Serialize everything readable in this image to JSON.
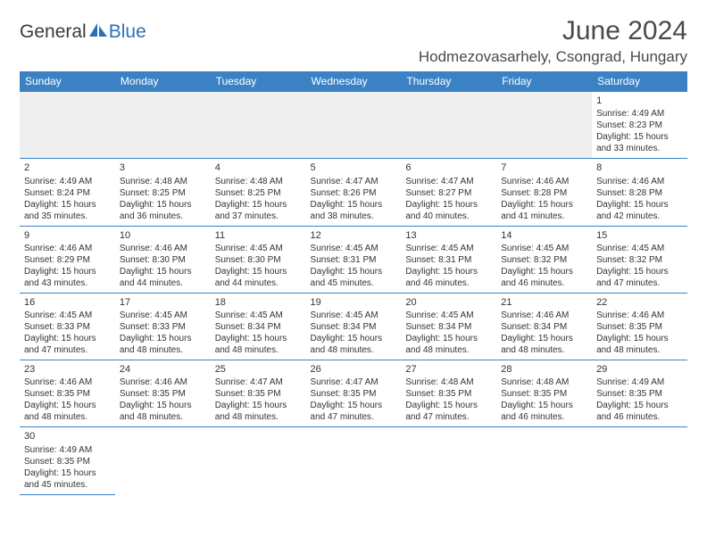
{
  "logo": {
    "text_a": "General",
    "text_b": "Blue"
  },
  "title": "June 2024",
  "location": "Hodmezovasarhely, Csongrad, Hungary",
  "day_headers": [
    "Sunday",
    "Monday",
    "Tuesday",
    "Wednesday",
    "Thursday",
    "Friday",
    "Saturday"
  ],
  "colors": {
    "header_bg": "#3b82c4",
    "header_text": "#ffffff",
    "border": "#3b82c4",
    "filler_bg": "#efefef",
    "text": "#333333",
    "logo_blue": "#2a72b5"
  },
  "weeks": [
    [
      {},
      {},
      {},
      {},
      {},
      {},
      {
        "n": "1",
        "sr": "Sunrise: 4:49 AM",
        "ss": "Sunset: 8:23 PM",
        "d1": "Daylight: 15 hours",
        "d2": "and 33 minutes."
      }
    ],
    [
      {
        "n": "2",
        "sr": "Sunrise: 4:49 AM",
        "ss": "Sunset: 8:24 PM",
        "d1": "Daylight: 15 hours",
        "d2": "and 35 minutes."
      },
      {
        "n": "3",
        "sr": "Sunrise: 4:48 AM",
        "ss": "Sunset: 8:25 PM",
        "d1": "Daylight: 15 hours",
        "d2": "and 36 minutes."
      },
      {
        "n": "4",
        "sr": "Sunrise: 4:48 AM",
        "ss": "Sunset: 8:25 PM",
        "d1": "Daylight: 15 hours",
        "d2": "and 37 minutes."
      },
      {
        "n": "5",
        "sr": "Sunrise: 4:47 AM",
        "ss": "Sunset: 8:26 PM",
        "d1": "Daylight: 15 hours",
        "d2": "and 38 minutes."
      },
      {
        "n": "6",
        "sr": "Sunrise: 4:47 AM",
        "ss": "Sunset: 8:27 PM",
        "d1": "Daylight: 15 hours",
        "d2": "and 40 minutes."
      },
      {
        "n": "7",
        "sr": "Sunrise: 4:46 AM",
        "ss": "Sunset: 8:28 PM",
        "d1": "Daylight: 15 hours",
        "d2": "and 41 minutes."
      },
      {
        "n": "8",
        "sr": "Sunrise: 4:46 AM",
        "ss": "Sunset: 8:28 PM",
        "d1": "Daylight: 15 hours",
        "d2": "and 42 minutes."
      }
    ],
    [
      {
        "n": "9",
        "sr": "Sunrise: 4:46 AM",
        "ss": "Sunset: 8:29 PM",
        "d1": "Daylight: 15 hours",
        "d2": "and 43 minutes."
      },
      {
        "n": "10",
        "sr": "Sunrise: 4:46 AM",
        "ss": "Sunset: 8:30 PM",
        "d1": "Daylight: 15 hours",
        "d2": "and 44 minutes."
      },
      {
        "n": "11",
        "sr": "Sunrise: 4:45 AM",
        "ss": "Sunset: 8:30 PM",
        "d1": "Daylight: 15 hours",
        "d2": "and 44 minutes."
      },
      {
        "n": "12",
        "sr": "Sunrise: 4:45 AM",
        "ss": "Sunset: 8:31 PM",
        "d1": "Daylight: 15 hours",
        "d2": "and 45 minutes."
      },
      {
        "n": "13",
        "sr": "Sunrise: 4:45 AM",
        "ss": "Sunset: 8:31 PM",
        "d1": "Daylight: 15 hours",
        "d2": "and 46 minutes."
      },
      {
        "n": "14",
        "sr": "Sunrise: 4:45 AM",
        "ss": "Sunset: 8:32 PM",
        "d1": "Daylight: 15 hours",
        "d2": "and 46 minutes."
      },
      {
        "n": "15",
        "sr": "Sunrise: 4:45 AM",
        "ss": "Sunset: 8:32 PM",
        "d1": "Daylight: 15 hours",
        "d2": "and 47 minutes."
      }
    ],
    [
      {
        "n": "16",
        "sr": "Sunrise: 4:45 AM",
        "ss": "Sunset: 8:33 PM",
        "d1": "Daylight: 15 hours",
        "d2": "and 47 minutes."
      },
      {
        "n": "17",
        "sr": "Sunrise: 4:45 AM",
        "ss": "Sunset: 8:33 PM",
        "d1": "Daylight: 15 hours",
        "d2": "and 48 minutes."
      },
      {
        "n": "18",
        "sr": "Sunrise: 4:45 AM",
        "ss": "Sunset: 8:34 PM",
        "d1": "Daylight: 15 hours",
        "d2": "and 48 minutes."
      },
      {
        "n": "19",
        "sr": "Sunrise: 4:45 AM",
        "ss": "Sunset: 8:34 PM",
        "d1": "Daylight: 15 hours",
        "d2": "and 48 minutes."
      },
      {
        "n": "20",
        "sr": "Sunrise: 4:45 AM",
        "ss": "Sunset: 8:34 PM",
        "d1": "Daylight: 15 hours",
        "d2": "and 48 minutes."
      },
      {
        "n": "21",
        "sr": "Sunrise: 4:46 AM",
        "ss": "Sunset: 8:34 PM",
        "d1": "Daylight: 15 hours",
        "d2": "and 48 minutes."
      },
      {
        "n": "22",
        "sr": "Sunrise: 4:46 AM",
        "ss": "Sunset: 8:35 PM",
        "d1": "Daylight: 15 hours",
        "d2": "and 48 minutes."
      }
    ],
    [
      {
        "n": "23",
        "sr": "Sunrise: 4:46 AM",
        "ss": "Sunset: 8:35 PM",
        "d1": "Daylight: 15 hours",
        "d2": "and 48 minutes."
      },
      {
        "n": "24",
        "sr": "Sunrise: 4:46 AM",
        "ss": "Sunset: 8:35 PM",
        "d1": "Daylight: 15 hours",
        "d2": "and 48 minutes."
      },
      {
        "n": "25",
        "sr": "Sunrise: 4:47 AM",
        "ss": "Sunset: 8:35 PM",
        "d1": "Daylight: 15 hours",
        "d2": "and 48 minutes."
      },
      {
        "n": "26",
        "sr": "Sunrise: 4:47 AM",
        "ss": "Sunset: 8:35 PM",
        "d1": "Daylight: 15 hours",
        "d2": "and 47 minutes."
      },
      {
        "n": "27",
        "sr": "Sunrise: 4:48 AM",
        "ss": "Sunset: 8:35 PM",
        "d1": "Daylight: 15 hours",
        "d2": "and 47 minutes."
      },
      {
        "n": "28",
        "sr": "Sunrise: 4:48 AM",
        "ss": "Sunset: 8:35 PM",
        "d1": "Daylight: 15 hours",
        "d2": "and 46 minutes."
      },
      {
        "n": "29",
        "sr": "Sunrise: 4:49 AM",
        "ss": "Sunset: 8:35 PM",
        "d1": "Daylight: 15 hours",
        "d2": "and 46 minutes."
      }
    ],
    [
      {
        "n": "30",
        "sr": "Sunrise: 4:49 AM",
        "ss": "Sunset: 8:35 PM",
        "d1": "Daylight: 15 hours",
        "d2": "and 45 minutes."
      },
      {},
      {},
      {},
      {},
      {},
      {}
    ]
  ]
}
